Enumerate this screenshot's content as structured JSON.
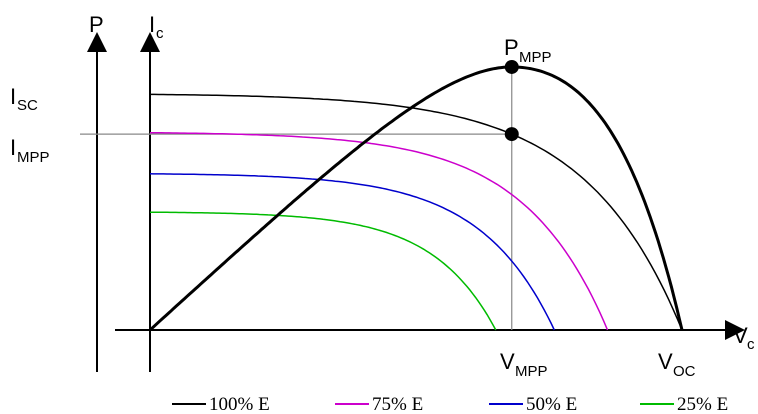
{
  "chart_data": {
    "type": "line",
    "title": "",
    "x_axis": {
      "label_main": "V",
      "label_sub": "c"
    },
    "y_axes": [
      {
        "label_main": "P",
        "label_sub": ""
      },
      {
        "label_main": "I",
        "label_sub": "c"
      }
    ],
    "annotations": {
      "isc": {
        "main": "I",
        "sub": "SC"
      },
      "impp": {
        "main": "I",
        "sub": "MPP"
      },
      "pmpp": {
        "main": "P",
        "sub": "MPP"
      },
      "vmpp": {
        "main": "V",
        "sub": "MPP"
      },
      "voc": {
        "main": "V",
        "sub": "OC"
      }
    },
    "series": [
      {
        "name": "100% E",
        "color": "#000000",
        "isc": 0.86,
        "voc": 1.0
      },
      {
        "name": "75% E",
        "color": "#cc00cc",
        "isc": 0.72,
        "voc": 0.86
      },
      {
        "name": "50% E",
        "color": "#0000cc",
        "isc": 0.57,
        "voc": 0.76
      },
      {
        "name": "25% E",
        "color": "#00bb00",
        "isc": 0.43,
        "voc": 0.65
      }
    ],
    "power_curve": {
      "color": "#000000",
      "mpp_v": 0.68,
      "mpp_p": 0.96
    },
    "grid": false,
    "legend_position": "bottom"
  }
}
